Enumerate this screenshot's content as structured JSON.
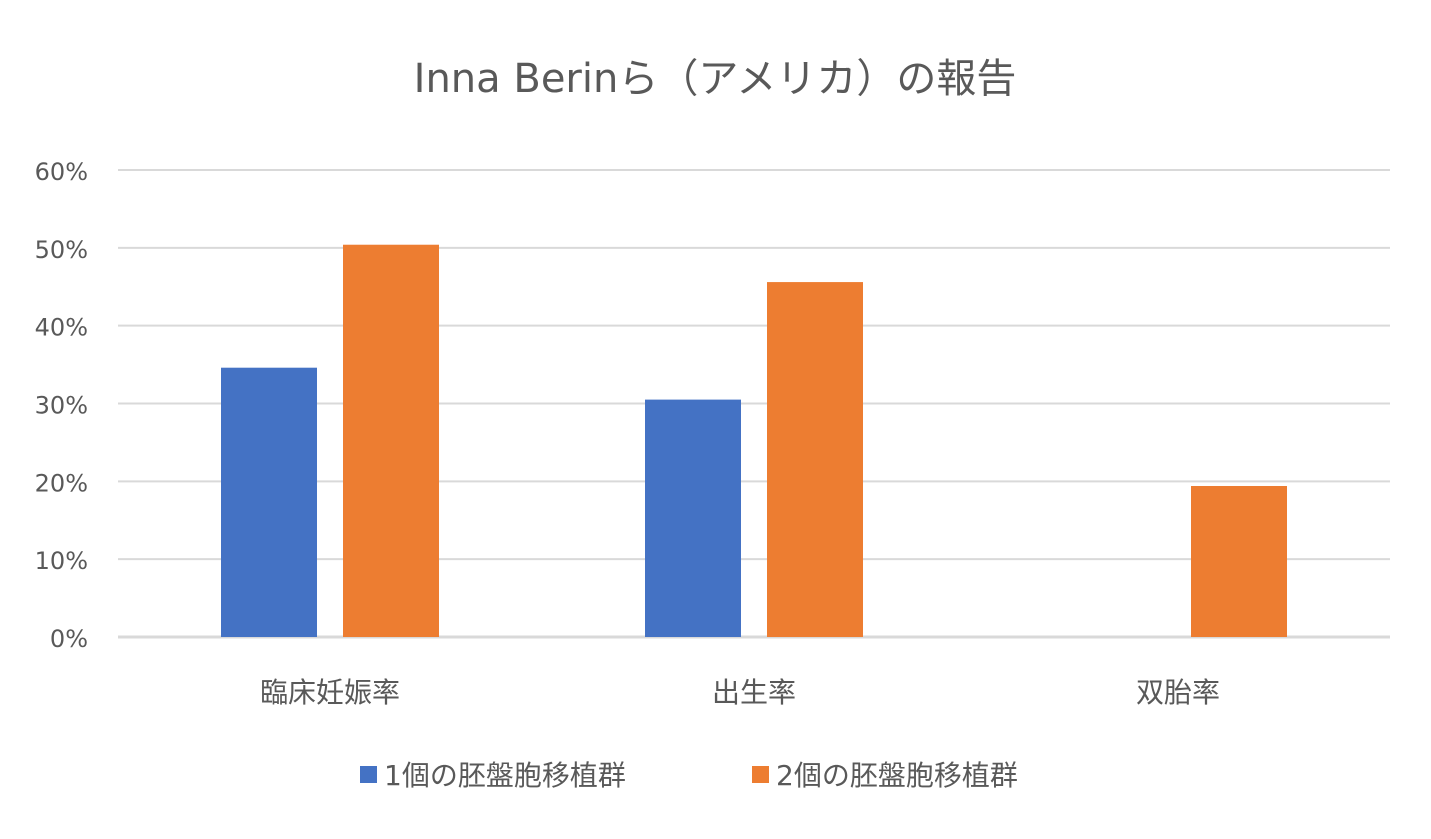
{
  "chart_data": {
    "type": "bar",
    "title": "Inna Berinら（アメリカ）の報告",
    "categories": [
      "臨床妊娠率",
      "出生率",
      "双胎率"
    ],
    "series": [
      {
        "name": "1個の胚盤胞移植群",
        "values": [
          34.6,
          30.5,
          0
        ],
        "color": "#4472C4"
      },
      {
        "name": "2個の胚盤胞移植群",
        "values": [
          50.4,
          45.6,
          19.4
        ],
        "color": "#ED7D31"
      }
    ],
    "xlabel": "",
    "ylabel": "",
    "ylim": [
      0,
      60
    ],
    "yticks": [
      "0%",
      "10%",
      "20%",
      "30%",
      "40%",
      "50%",
      "60%"
    ],
    "grid": true,
    "legend_position": "bottom"
  }
}
